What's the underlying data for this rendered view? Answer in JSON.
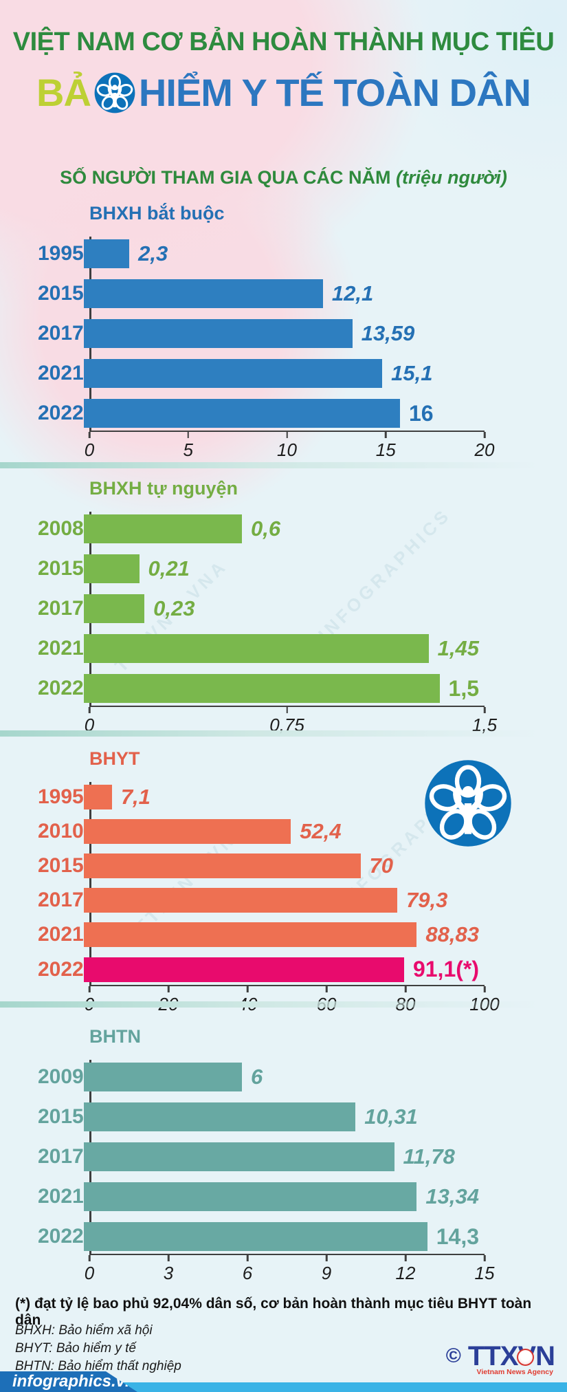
{
  "header": {
    "title_line1": "VIỆT NAM CƠ BẢN HOÀN THÀNH MỤC TIÊU",
    "title_line2_prefix": "BẢ",
    "title_line2_suffix": "HIỂM Y TẾ TOÀN DÂN",
    "subtitle": "SỐ NGƯỜI THAM GIA QUA CÁC NĂM",
    "subtitle_unit": "(triệu người)"
  },
  "colors": {
    "title_green": "#2e8b3f",
    "title_blue": "#2c77c0",
    "title_lime": "#bdd034",
    "logo_blue": "#0d72b9",
    "highlight_magenta": "#e80b6d",
    "background_cyan": "#e7f3f7",
    "background_pink": "#f9dce4"
  },
  "chart_data": [
    {
      "type": "bar",
      "title": "BHXH bắt buộc",
      "bar_color": "#2e7fc0",
      "label_color": "#2470b4",
      "categories": [
        "1995",
        "2015",
        "2017",
        "2021",
        "2022"
      ],
      "values": [
        2.3,
        12.1,
        13.59,
        15.1,
        16
      ],
      "value_labels": [
        "2,3",
        "12,1",
        "13,59",
        "15,1",
        "16"
      ],
      "xlim": [
        0,
        20
      ],
      "ticks": [
        "0",
        "5",
        "10",
        "15",
        "20"
      ],
      "highlight_index": -1
    },
    {
      "type": "bar",
      "title": "BHXH tự nguyện",
      "bar_color": "#7ab84d",
      "label_color": "#74ad43",
      "categories": [
        "2008",
        "2015",
        "2017",
        "2021",
        "2022"
      ],
      "values": [
        0.6,
        0.21,
        0.23,
        1.45,
        1.5
      ],
      "value_labels": [
        "0,6",
        "0,21",
        "0,23",
        "1,45",
        "1,5"
      ],
      "xlim": [
        0,
        1.5
      ],
      "ticks": [
        "0",
        "0,75",
        "1,5"
      ],
      "highlight_index": -1
    },
    {
      "type": "bar",
      "title": "BHYT",
      "bar_color": "#ee7052",
      "label_color": "#e2614b",
      "categories": [
        "1995",
        "2010",
        "2015",
        "2017",
        "2021",
        "2022"
      ],
      "values": [
        7.1,
        52.4,
        70,
        79.3,
        88.83,
        91.1
      ],
      "value_labels": [
        "7,1",
        "52,4",
        "70",
        "79,3",
        "88,83",
        "91,1(*)"
      ],
      "xlim": [
        0,
        100
      ],
      "ticks": [
        "0",
        "20",
        "40",
        "60",
        "80",
        "100"
      ],
      "highlight_index": 5,
      "highlight_color": "#e80b6d"
    },
    {
      "type": "bar",
      "title": "BHTN",
      "bar_color": "#68a9a3",
      "label_color": "#63a39d",
      "categories": [
        "2009",
        "2015",
        "2017",
        "2021",
        "2022"
      ],
      "values": [
        6,
        10.31,
        11.78,
        13.34,
        14.3
      ],
      "value_labels": [
        "6",
        "10,31",
        "11,78",
        "13,34",
        "14,3"
      ],
      "xlim": [
        0,
        15
      ],
      "ticks": [
        "0",
        "3",
        "6",
        "9",
        "12",
        "15"
      ],
      "highlight_index": -1
    }
  ],
  "footnotes": {
    "asterisk": "(*) đạt tỷ lệ bao phủ 92,04% dân số, cơ bản hoàn thành mục tiêu BHYT toàn dân",
    "abbreviations": [
      "BHXH: Bảo hiểm xã hội",
      "BHYT: Bảo hiểm y tế",
      "BHTN: Bảo hiểm thất nghiệp"
    ]
  },
  "footer": {
    "brand": "infographics.vn",
    "copyright": "©",
    "agency_name": "TTXVN",
    "agency_caption": "Vietnam News Agency"
  },
  "watermarks": [
    "TTXVN - VNA",
    "INFOGRAPHICS"
  ]
}
